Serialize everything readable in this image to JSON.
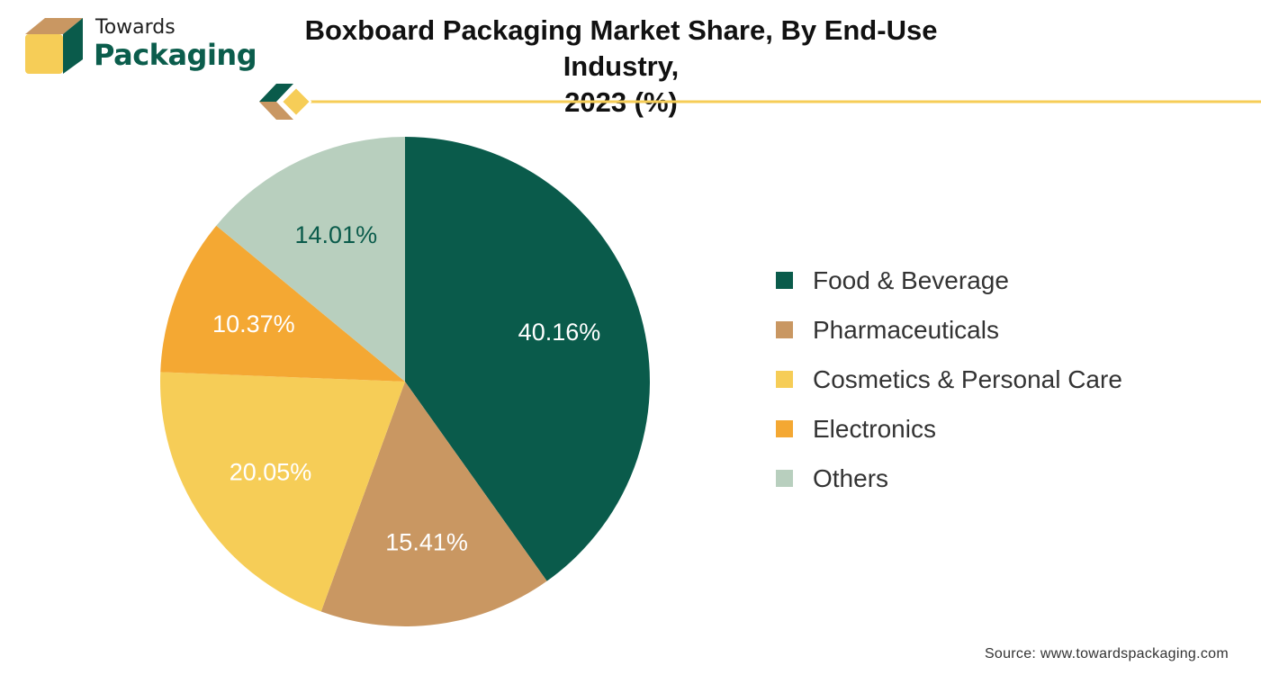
{
  "brand": {
    "line1": "Towards",
    "line2": "Packaging"
  },
  "header": {
    "title_line1": "Boxboard Packaging Market Share, By End-Use Industry,",
    "title_line2": "2023 (%)"
  },
  "colors": {
    "food_beverage": "#0a5b4b",
    "pharmaceuticals": "#c99762",
    "cosmetics": "#f6cd57",
    "electronics": "#f4a833",
    "others": "#b8cfbe",
    "accent_line": "#f6cd57"
  },
  "chart_data": {
    "type": "pie",
    "title": "Boxboard Packaging Market Share, By End-Use Industry, 2023 (%)",
    "slices": [
      {
        "label": "Food & Beverage",
        "value": 40.16,
        "display": "40.16%",
        "color": "#0a5b4b",
        "text_color": "#ffffff"
      },
      {
        "label": "Pharmaceuticals",
        "value": 15.41,
        "display": "15.41%",
        "color": "#c99762",
        "text_color": "#ffffff"
      },
      {
        "label": "Cosmetics & Personal Care",
        "value": 20.05,
        "display": "20.05%",
        "color": "#f6cd57",
        "text_color": "#ffffff"
      },
      {
        "label": "Electronics",
        "value": 10.37,
        "display": "10.37%",
        "color": "#f4a833",
        "text_color": "#ffffff"
      },
      {
        "label": "Others",
        "value": 14.01,
        "display": "14.01%",
        "color": "#b8cfbe",
        "text_color": "#0a5b4b"
      }
    ],
    "legend_position": "right"
  },
  "footer": {
    "source": "Source: www.towardspackaging.com"
  }
}
